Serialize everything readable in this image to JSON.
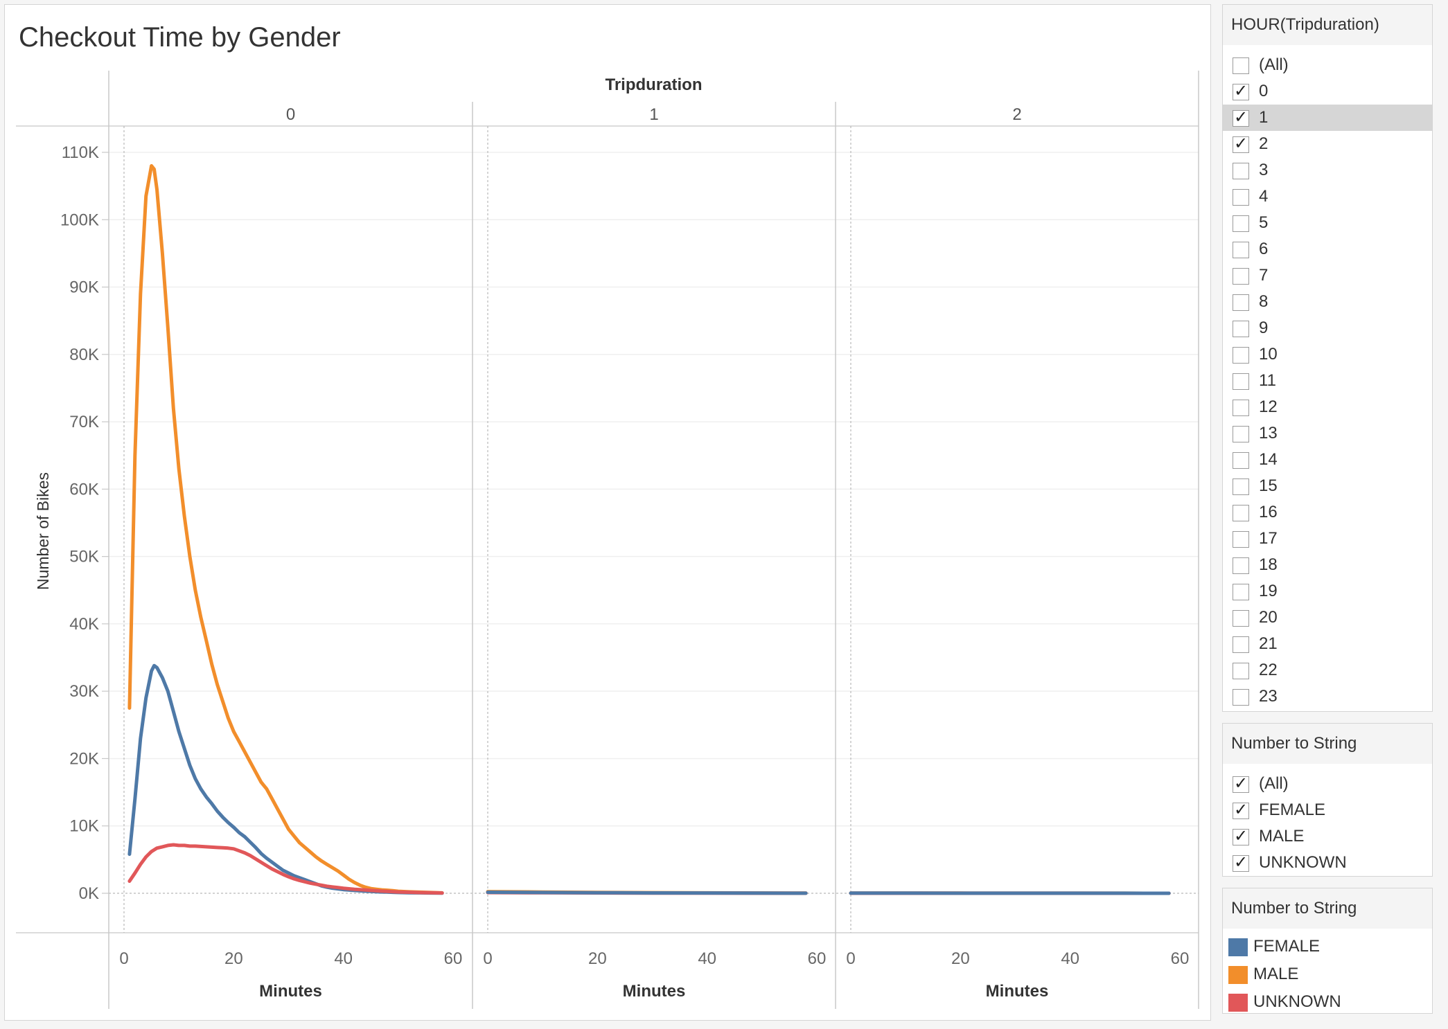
{
  "chart_data": {
    "type": "line",
    "title": "Checkout Time by Gender",
    "column_header": "Tripduration",
    "xlabel": "Minutes",
    "ylabel": "Number of Bikes",
    "ylim": [
      0,
      110000
    ],
    "xlim": [
      0,
      60
    ],
    "y_ticks": [
      "0K",
      "10K",
      "20K",
      "30K",
      "40K",
      "50K",
      "60K",
      "70K",
      "80K",
      "90K",
      "100K",
      "110K"
    ],
    "x_ticks": [
      "0",
      "20",
      "40",
      "60"
    ],
    "grid": true,
    "panels": [
      {
        "label": "0",
        "series": [
          {
            "name": "MALE",
            "color": "#f28e2b",
            "x": [
              1,
              2,
              3,
              4,
              5,
              5.5,
              6,
              7,
              8,
              9,
              10,
              11,
              12,
              13,
              14,
              15,
              16,
              17,
              18,
              19,
              20,
              21,
              22,
              23,
              24,
              25,
              26,
              27,
              28,
              29,
              30,
              31,
              32,
              33,
              34,
              35,
              36,
              37,
              38,
              39,
              40,
              41,
              42,
              43,
              44,
              45,
              46,
              47,
              48,
              49,
              50,
              52,
              54,
              56,
              58
            ],
            "y": [
              27500,
              65000,
              89000,
              103500,
              108000,
              107500,
              104500,
              95000,
              84000,
              72000,
              63000,
              56000,
              50000,
              45000,
              41000,
              37500,
              34000,
              31000,
              28500,
              26000,
              24000,
              22500,
              21000,
              19500,
              18000,
              16500,
              15500,
              14000,
              12500,
              11000,
              9500,
              8500,
              7500,
              6800,
              6100,
              5400,
              4800,
              4300,
              3800,
              3300,
              2700,
              2100,
              1600,
              1200,
              900,
              700,
              600,
              500,
              450,
              380,
              300,
              220,
              160,
              110,
              60
            ]
          },
          {
            "name": "FEMALE",
            "color": "#4e79a7",
            "x": [
              1,
              2,
              3,
              4,
              5,
              5.5,
              6,
              7,
              8,
              9,
              10,
              11,
              12,
              13,
              14,
              15,
              16,
              17,
              18,
              19,
              20,
              21,
              22,
              23,
              24,
              25,
              26,
              27,
              28,
              29,
              30,
              31,
              32,
              33,
              34,
              35,
              36,
              37,
              38,
              39,
              40,
              41,
              42,
              43,
              44,
              45,
              46,
              47,
              48,
              49,
              50,
              52,
              54,
              56,
              58
            ],
            "y": [
              5800,
              14000,
              23000,
              29000,
              33000,
              33800,
              33500,
              32000,
              30000,
              27000,
              24000,
              21500,
              19000,
              17000,
              15500,
              14300,
              13300,
              12200,
              11300,
              10500,
              9800,
              9000,
              8400,
              7600,
              6800,
              5900,
              5200,
              4600,
              4000,
              3400,
              3000,
              2600,
              2300,
              2000,
              1700,
              1400,
              1100,
              900,
              750,
              650,
              550,
              480,
              420,
              370,
              320,
              280,
              240,
              200,
              170,
              140,
              110,
              80,
              60,
              40,
              20
            ]
          },
          {
            "name": "UNKNOWN",
            "color": "#e15759",
            "x": [
              1,
              2,
              3,
              4,
              5,
              6,
              7,
              8,
              9,
              10,
              11,
              12,
              13,
              14,
              15,
              16,
              17,
              18,
              19,
              20,
              21,
              22,
              23,
              24,
              25,
              26,
              27,
              28,
              29,
              30,
              31,
              32,
              33,
              34,
              35,
              36,
              37,
              38,
              39,
              40,
              41,
              42,
              43,
              44,
              45,
              46,
              47,
              48,
              49,
              50,
              52,
              54,
              56,
              58
            ],
            "y": [
              1800,
              3000,
              4300,
              5400,
              6200,
              6700,
              6900,
              7100,
              7200,
              7100,
              7100,
              7000,
              7000,
              6950,
              6900,
              6850,
              6800,
              6750,
              6700,
              6600,
              6300,
              6000,
              5600,
              5100,
              4600,
              4100,
              3600,
              3200,
              2800,
              2450,
              2150,
              1900,
              1700,
              1500,
              1350,
              1200,
              1050,
              950,
              850,
              750,
              670,
              600,
              540,
              480,
              420,
              370,
              320,
              280,
              240,
              200,
              150,
              100,
              70,
              40
            ]
          }
        ]
      },
      {
        "label": "1",
        "series": [
          {
            "name": "MALE",
            "color": "#f28e2b",
            "x": [
              0,
              10,
              20,
              30,
              40,
              50,
              58
            ],
            "y": [
              250,
              180,
              130,
              90,
              60,
              40,
              20
            ]
          },
          {
            "name": "UNKNOWN",
            "color": "#e15759",
            "x": [
              0,
              10,
              20,
              30,
              40,
              50,
              58
            ],
            "y": [
              100,
              70,
              50,
              35,
              25,
              15,
              10
            ]
          },
          {
            "name": "FEMALE",
            "color": "#4e79a7",
            "x": [
              0,
              10,
              20,
              30,
              40,
              50,
              58
            ],
            "y": [
              150,
              110,
              80,
              55,
              40,
              25,
              15
            ]
          }
        ]
      },
      {
        "label": "2",
        "series": [
          {
            "name": "MALE",
            "color": "#f28e2b",
            "x": [
              0,
              10,
              20,
              30,
              40,
              50,
              58
            ],
            "y": [
              30,
              25,
              20,
              15,
              10,
              8,
              5
            ]
          },
          {
            "name": "UNKNOWN",
            "color": "#e15759",
            "x": [
              0,
              10,
              20,
              30,
              40,
              50,
              58
            ],
            "y": [
              15,
              12,
              10,
              8,
              6,
              4,
              3
            ]
          },
          {
            "name": "FEMALE",
            "color": "#4e79a7",
            "x": [
              0,
              10,
              20,
              30,
              40,
              50,
              58
            ],
            "y": [
              20,
              18,
              15,
              12,
              9,
              6,
              4
            ]
          }
        ]
      }
    ]
  },
  "filters": {
    "hour": {
      "title": "HOUR(Tripduration)",
      "items": [
        {
          "label": "(All)",
          "checked": false
        },
        {
          "label": "0",
          "checked": true
        },
        {
          "label": "1",
          "checked": true
        },
        {
          "label": "2",
          "checked": true
        },
        {
          "label": "3",
          "checked": false
        },
        {
          "label": "4",
          "checked": false
        },
        {
          "label": "5",
          "checked": false
        },
        {
          "label": "6",
          "checked": false
        },
        {
          "label": "7",
          "checked": false
        },
        {
          "label": "8",
          "checked": false
        },
        {
          "label": "9",
          "checked": false
        },
        {
          "label": "10",
          "checked": false
        },
        {
          "label": "11",
          "checked": false
        },
        {
          "label": "12",
          "checked": false
        },
        {
          "label": "13",
          "checked": false
        },
        {
          "label": "14",
          "checked": false
        },
        {
          "label": "15",
          "checked": false
        },
        {
          "label": "16",
          "checked": false
        },
        {
          "label": "17",
          "checked": false
        },
        {
          "label": "18",
          "checked": false
        },
        {
          "label": "19",
          "checked": false
        },
        {
          "label": "20",
          "checked": false
        },
        {
          "label": "21",
          "checked": false
        },
        {
          "label": "22",
          "checked": false
        },
        {
          "label": "23",
          "checked": false
        }
      ]
    },
    "gender": {
      "title": "Number to String",
      "items": [
        {
          "label": "(All)",
          "checked": true
        },
        {
          "label": "FEMALE",
          "checked": true
        },
        {
          "label": "MALE",
          "checked": true
        },
        {
          "label": "UNKNOWN",
          "checked": true
        }
      ]
    }
  },
  "legend": {
    "title": "Number to String",
    "items": [
      {
        "label": "FEMALE",
        "color": "#4e79a7"
      },
      {
        "label": "MALE",
        "color": "#f28e2b"
      },
      {
        "label": "UNKNOWN",
        "color": "#e15759"
      }
    ]
  }
}
